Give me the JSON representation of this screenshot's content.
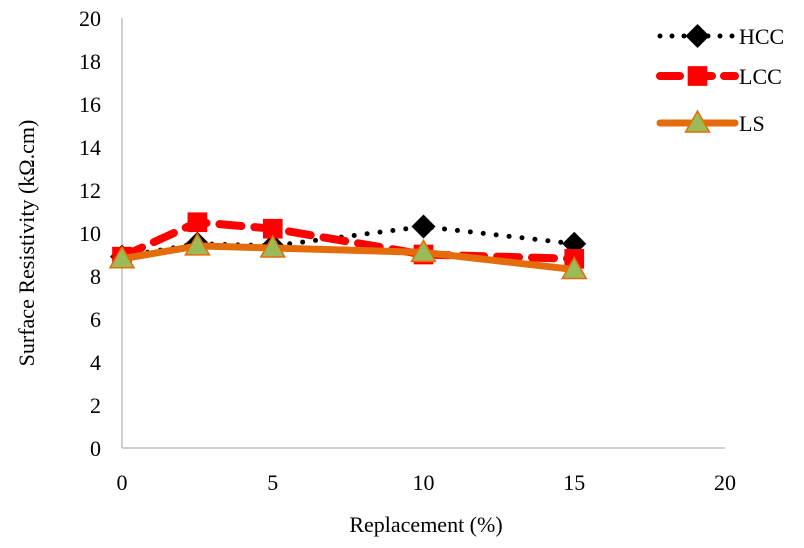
{
  "chart_data": {
    "type": "line",
    "title": "",
    "xlabel": "Replacement (%)",
    "ylabel": "Surface Resistivity (kΩ.cm)",
    "xlim": [
      0,
      20
    ],
    "ylim": [
      0,
      20
    ],
    "x_ticks": [
      0,
      5,
      10,
      15,
      20
    ],
    "y_ticks": [
      0,
      2,
      4,
      6,
      8,
      10,
      12,
      14,
      16,
      18,
      20
    ],
    "grid": false,
    "legend_position": "top-right",
    "series": [
      {
        "name": "HCC",
        "x": [
          0,
          2.5,
          5,
          10,
          15
        ],
        "values": [
          8.9,
          9.5,
          9.4,
          10.3,
          9.5
        ],
        "color": "#000000",
        "line_style": "dotted",
        "marker": "diamond"
      },
      {
        "name": "LCC",
        "x": [
          0,
          2.5,
          5,
          10,
          15
        ],
        "values": [
          8.9,
          10.5,
          10.2,
          9.0,
          8.8
        ],
        "color": "#ff0000",
        "line_style": "dashed",
        "marker": "square"
      },
      {
        "name": "LS",
        "x": [
          0,
          2.5,
          5,
          10,
          15
        ],
        "values": [
          8.8,
          9.4,
          9.3,
          9.1,
          8.3
        ],
        "color": "#e46c0a",
        "marker_fill": "#9bbb59",
        "line_style": "solid",
        "marker": "triangle"
      }
    ]
  }
}
